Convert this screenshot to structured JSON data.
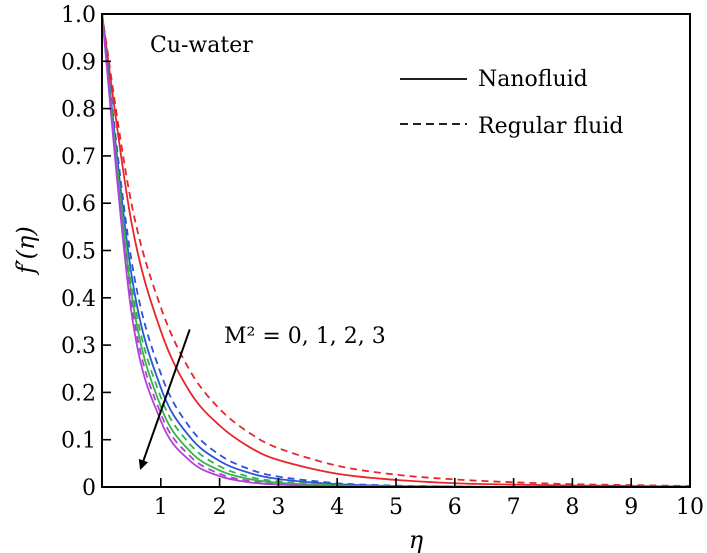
{
  "chart_data": {
    "type": "line",
    "title": "",
    "panel_label": "Cu-water",
    "xlabel": "η",
    "ylabel": "f′(η)",
    "xlim": [
      0,
      10
    ],
    "ylim": [
      0,
      1
    ],
    "x_ticks": [
      1,
      2,
      3,
      4,
      5,
      6,
      7,
      8,
      9,
      10
    ],
    "y_ticks": [
      0,
      0.1,
      0.2,
      0.3,
      0.4,
      0.5,
      0.6,
      0.7,
      0.8,
      0.9,
      1.0
    ],
    "y_tick_labels": [
      "0",
      "0.1",
      "0.2",
      "0.3",
      "0.4",
      "0.5",
      "0.6",
      "0.7",
      "0.8",
      "0.9",
      "1.0"
    ],
    "grid": false,
    "legend": {
      "placement": "top-right",
      "entries": [
        {
          "label": "Nanofluid",
          "style": "solid"
        },
        {
          "label": "Regular fluid",
          "style": "dashed"
        }
      ]
    },
    "annotation": {
      "label": "M² = 0, 1, 2, 3",
      "arrow_from": [
        1.05,
        0.35
      ],
      "arrow_to": [
        0.15,
        0.04
      ]
    },
    "series": [
      {
        "m2": 0,
        "style": "solid",
        "color": "#e8262a",
        "x": [
          0,
          0.5,
          1,
          1.5,
          2,
          2.5,
          3,
          4,
          5,
          6,
          7,
          8,
          9,
          10
        ],
        "y": [
          1.0,
          0.56,
          0.33,
          0.2,
          0.13,
          0.085,
          0.057,
          0.028,
          0.015,
          0.008,
          0.005,
          0.003,
          0.002,
          0.001
        ]
      },
      {
        "m2": 0,
        "style": "dashed",
        "color": "#e8262a",
        "x": [
          0,
          0.5,
          1,
          1.5,
          2,
          2.5,
          3,
          4,
          5,
          6,
          7,
          8,
          9,
          10
        ],
        "y": [
          1.0,
          0.6,
          0.38,
          0.245,
          0.165,
          0.115,
          0.082,
          0.045,
          0.026,
          0.016,
          0.01,
          0.006,
          0.004,
          0.002
        ]
      },
      {
        "m2": 1,
        "style": "solid",
        "color": "#2a55d6",
        "x": [
          0,
          0.5,
          1,
          1.5,
          2,
          2.5,
          3,
          4,
          5,
          6,
          7,
          8,
          9,
          10
        ],
        "y": [
          1.0,
          0.45,
          0.21,
          0.105,
          0.055,
          0.03,
          0.017,
          0.006,
          0.002,
          0.001,
          0.0,
          0.0,
          0.0,
          0.0
        ]
      },
      {
        "m2": 1,
        "style": "dashed",
        "color": "#2a55d6",
        "x": [
          0,
          0.5,
          1,
          1.5,
          2,
          2.5,
          3,
          4,
          5,
          6,
          7,
          8,
          9,
          10
        ],
        "y": [
          1.0,
          0.48,
          0.24,
          0.125,
          0.068,
          0.038,
          0.022,
          0.008,
          0.003,
          0.001,
          0.0,
          0.0,
          0.0,
          0.0
        ]
      },
      {
        "m2": 2,
        "style": "solid",
        "color": "#33b54a",
        "x": [
          0,
          0.5,
          1,
          1.5,
          2,
          2.5,
          3,
          4,
          5,
          6,
          7,
          8,
          9,
          10
        ],
        "y": [
          1.0,
          0.41,
          0.17,
          0.075,
          0.035,
          0.017,
          0.009,
          0.003,
          0.001,
          0.0,
          0.0,
          0.0,
          0.0,
          0.0
        ]
      },
      {
        "m2": 2,
        "style": "dashed",
        "color": "#33b54a",
        "x": [
          0,
          0.5,
          1,
          1.5,
          2,
          2.5,
          3,
          4,
          5,
          6,
          7,
          8,
          9,
          10
        ],
        "y": [
          1.0,
          0.43,
          0.19,
          0.09,
          0.044,
          0.022,
          0.012,
          0.004,
          0.001,
          0.0,
          0.0,
          0.0,
          0.0,
          0.0
        ]
      },
      {
        "m2": 3,
        "style": "solid",
        "color": "#b043d6",
        "x": [
          0,
          0.5,
          1,
          1.5,
          2,
          2.5,
          3,
          4,
          5,
          6,
          7,
          8,
          9,
          10
        ],
        "y": [
          1.0,
          0.37,
          0.14,
          0.055,
          0.023,
          0.01,
          0.005,
          0.001,
          0.0,
          0.0,
          0.0,
          0.0,
          0.0,
          0.0
        ]
      },
      {
        "m2": 3,
        "style": "dashed",
        "color": "#b043d6",
        "x": [
          0,
          0.5,
          1,
          1.5,
          2,
          2.5,
          3,
          4,
          5,
          6,
          7,
          8,
          9,
          10
        ],
        "y": [
          1.0,
          0.39,
          0.155,
          0.065,
          0.028,
          0.013,
          0.006,
          0.002,
          0.0,
          0.0,
          0.0,
          0.0,
          0.0,
          0.0
        ]
      }
    ]
  }
}
